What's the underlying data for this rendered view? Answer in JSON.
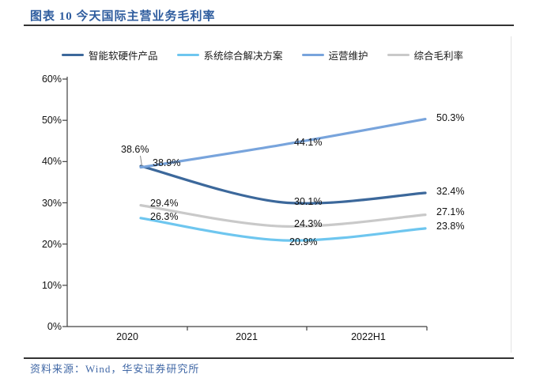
{
  "header": {
    "title": "图表 10 今天国际主营业务毛利率"
  },
  "footer": {
    "source": "资料来源：Wind，华安证券研究所"
  },
  "chart_data": {
    "type": "line",
    "title": "今天国际主营业务毛利率",
    "categories": [
      "2020",
      "2021",
      "2022H1"
    ],
    "series": [
      {
        "name": "智能软硬件产品",
        "color": "#3C689B",
        "values": [
          38.9,
          30.1,
          32.4
        ]
      },
      {
        "name": "系统综合解决方案",
        "color": "#6EC6EF",
        "values": [
          26.3,
          20.9,
          23.8
        ]
      },
      {
        "name": "运营维护",
        "color": "#78A4DC",
        "values": [
          38.6,
          44.1,
          50.3
        ]
      },
      {
        "name": "综合毛利率",
        "color": "#C9C9C9",
        "values": [
          29.4,
          24.3,
          27.1
        ]
      }
    ],
    "ylim": [
      0,
      60
    ],
    "ytick_labels": [
      "0%",
      "10%",
      "20%",
      "30%",
      "40%",
      "50%",
      "60%"
    ],
    "data_label_format": "{value}%",
    "line_style": "smooth",
    "grid": false,
    "legend_position": "top",
    "axis_color": "#404040"
  }
}
